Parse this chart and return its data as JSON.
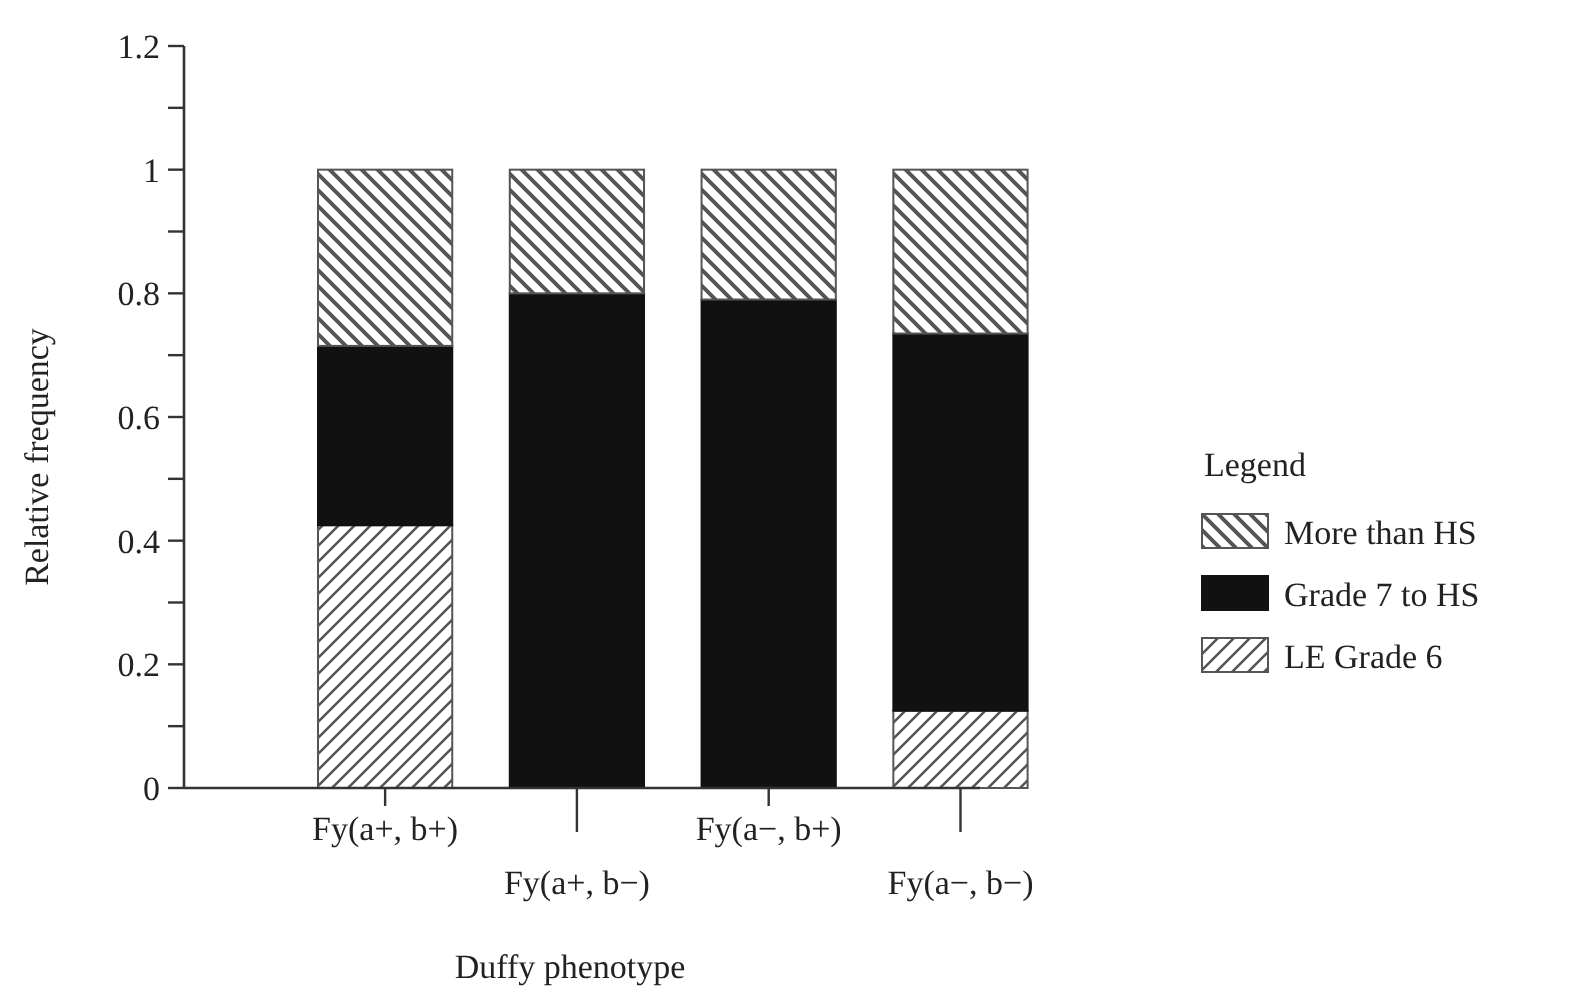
{
  "chart_data": {
    "type": "bar",
    "stacked": true,
    "xlabel": "Duffy phenotype",
    "ylabel": "Relative frequency",
    "legend_title": "Legend",
    "legend": "right",
    "categories": [
      "Fy(a+, b+)",
      "Fy(a+, b−)",
      "Fy(a−, b+)",
      "Fy(a−, b−)"
    ],
    "series": [
      {
        "name": "LE Grade 6",
        "color": "#555555",
        "values": [
          0.425,
          0,
          0,
          0.125
        ]
      },
      {
        "name": "Grade 7 to HS",
        "color": "#111111",
        "values": [
          0.29,
          0.8,
          0.79,
          0.61
        ]
      },
      {
        "name": "More than HS",
        "color": "#555555",
        "values": [
          0.285,
          0.2,
          0.21,
          0.265
        ]
      }
    ],
    "ylim": [
      0,
      1.2
    ],
    "yticks": [
      0,
      {
        "value": 0.1,
        "label": null
      },
      0.2,
      {
        "value": 0.3,
        "label": null
      },
      0.4,
      {
        "value": 0.5,
        "label": null
      },
      0.6,
      {
        "value": 0.7,
        "label": null
      },
      0.8,
      {
        "value": 0.9,
        "label": null
      },
      1,
      {
        "value": 1.1,
        "label": null
      },
      1.2
    ],
    "grid": false
  }
}
